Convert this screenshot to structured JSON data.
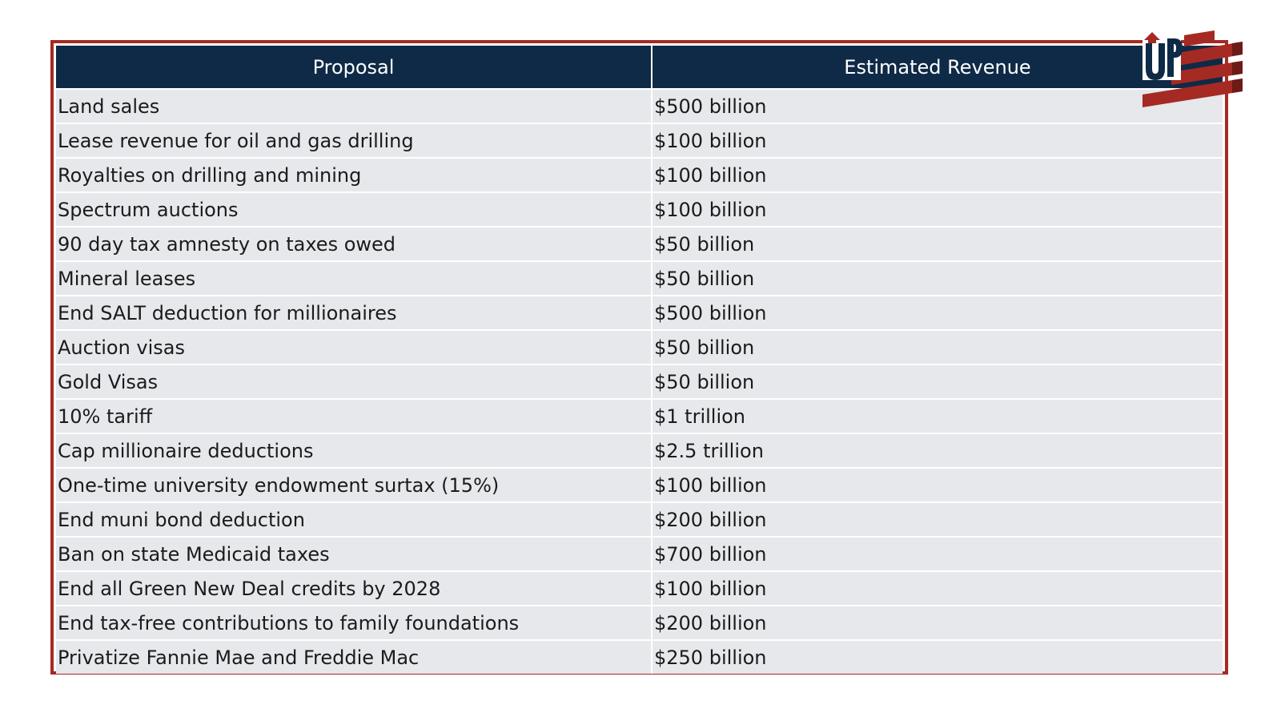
{
  "table": {
    "headers": [
      "Proposal",
      "Estimated Revenue"
    ],
    "rows": [
      [
        "Land sales",
        "$500 billion"
      ],
      [
        "Lease revenue for oil and gas drilling",
        "$100 billion"
      ],
      [
        "Royalties on drilling and mining",
        "$100 billion"
      ],
      [
        "Spectrum auctions",
        "$100 billion"
      ],
      [
        "90 day tax amnesty on taxes owed",
        "$50 billion"
      ],
      [
        "Mineral leases",
        "$50 billion"
      ],
      [
        "End SALT deduction for millionaires",
        "$500 billion"
      ],
      [
        "Auction visas",
        "$50 billion"
      ],
      [
        "Gold Visas",
        "$50 billion"
      ],
      [
        "10% tariff",
        "$1 trillion"
      ],
      [
        "Cap millionaire deductions",
        "$2.5 trillion"
      ],
      [
        "One-time university endowment surtax (15%)",
        "$100 billion"
      ],
      [
        "End muni bond deduction",
        "$200 billion"
      ],
      [
        "Ban on state Medicaid taxes",
        "$700 billion"
      ],
      [
        "End all Green New Deal credits by 2028",
        "$100 billion"
      ],
      [
        "End tax-free contributions to family foundations",
        "$200 billion"
      ],
      [
        "Privatize Fannie Mae and Freddie Mac",
        "$250 billion"
      ]
    ]
  },
  "logo": {
    "icon": "up-flag-logo",
    "text": "UP"
  },
  "colors": {
    "header_bg": "#0f2a47",
    "row_bg": "#e6e8eb",
    "frame_border": "#a52a23",
    "logo_red": "#a52a23",
    "logo_navy": "#0f2a47"
  }
}
